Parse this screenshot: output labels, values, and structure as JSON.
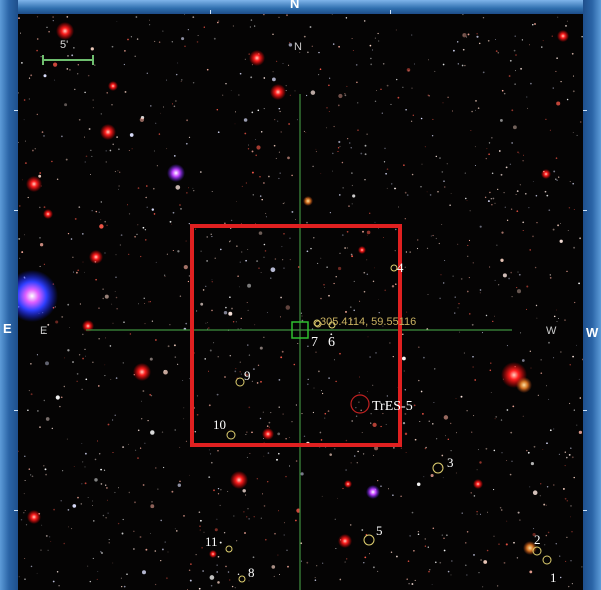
{
  "compass": {
    "frame_north": "N",
    "frame_east": "E",
    "frame_west": "W",
    "inner_north": "N",
    "inner_east": "E",
    "inner_west": "W"
  },
  "scale_bar": {
    "label": "5'"
  },
  "coordinate_readout": "305.4114, 59.55116",
  "target_label": "TrES-5",
  "comparison_stars": [
    "1",
    "2",
    "3",
    "4",
    "5",
    "6",
    "7",
    "8",
    "9",
    "10",
    "11"
  ],
  "colors": {
    "frame_blue": "#2f6fae",
    "sky_background": "#050404",
    "field_box": "#e02020",
    "crosshair": "#3f8f3f",
    "readout": "#c8b060",
    "marker_ring": "#e0d070",
    "target_ring": "#c02020"
  }
}
